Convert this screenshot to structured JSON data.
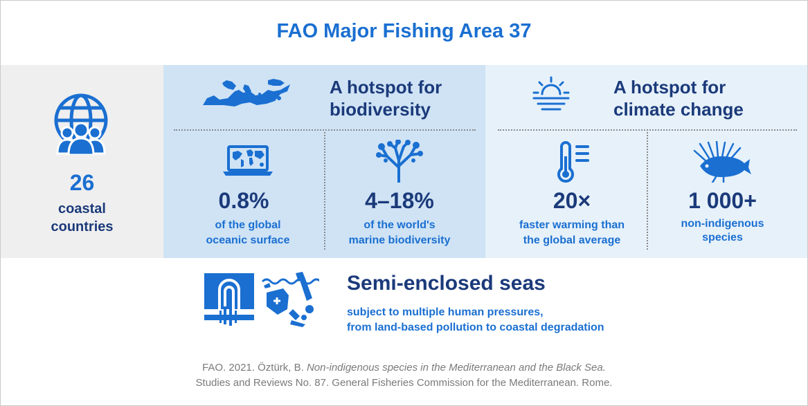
{
  "title": "FAO Major Fishing Area 37",
  "countries": {
    "number": "26",
    "line1": "coastal",
    "line2": "countries"
  },
  "biodiversity": {
    "heading_line1": "A hotspot for",
    "heading_line2": "biodiversity",
    "stat1": {
      "value": "0.8%",
      "line1": "of the global",
      "line2": "oceanic surface"
    },
    "stat2": {
      "value": "4–18%",
      "line1": "of the world's",
      "line2": "marine biodiversity"
    }
  },
  "climate": {
    "heading_line1": "A hotspot for",
    "heading_line2": "climate change",
    "stat1": {
      "value": "20×",
      "line1": "faster warming than",
      "line2": "the global average"
    },
    "stat2": {
      "value": "1 000+",
      "line1": "non-indigenous",
      "line2": "species"
    }
  },
  "seas": {
    "heading": "Semi-enclosed seas",
    "line1": "subject to multiple human pressures,",
    "line2": "from land-based pollution to coastal degradation"
  },
  "source": {
    "prefix": "FAO. 2021. Öztürk, B. ",
    "italic": "Non-indigenous species in the Mediterranean and the Black Sea.",
    "line2": "Studies and Reviews No. 87. General Fisheries Commission for the Mediterranean. Rome."
  },
  "colors": {
    "accent": "#1a6fd1",
    "navy": "#1b3a7a",
    "bio_bg": "#cfe3f5",
    "climate_bg": "#e6f1fa",
    "left_bg": "#efefef"
  },
  "icons": [
    "globe-people-icon",
    "mediterranean-map-icon",
    "laptop-world-map-icon",
    "coral-icon",
    "sunset-icon",
    "thermometer-icon",
    "lionfish-icon",
    "pipe-pollution-icon",
    "marine-litter-icon"
  ]
}
